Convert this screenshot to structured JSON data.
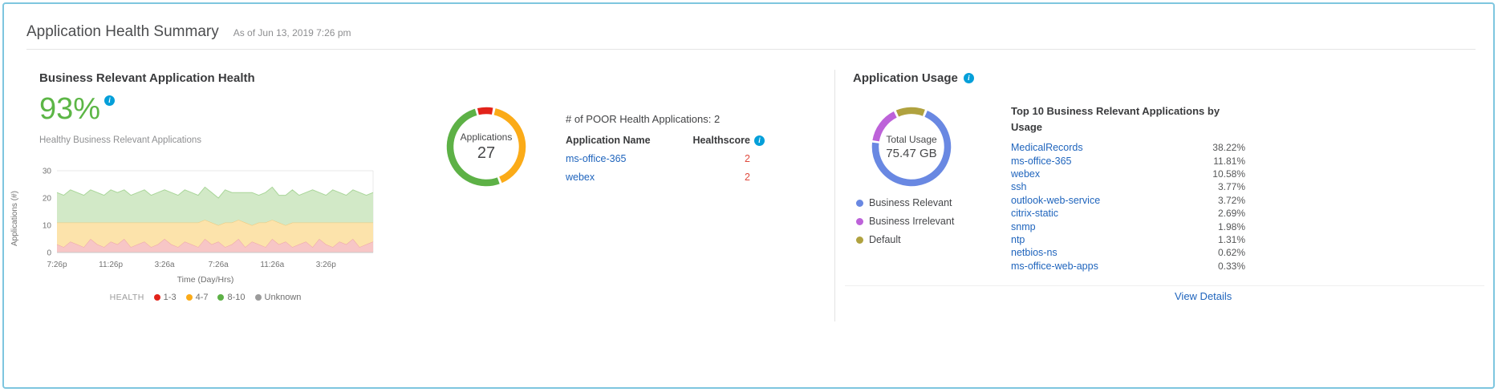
{
  "icons": {
    "info": "i"
  },
  "header": {
    "title": "Application Health Summary",
    "timestamp": "As of Jun 13, 2019 7:26 pm"
  },
  "health": {
    "section_title": "Business Relevant Application Health",
    "percent": "93%",
    "subtitle": "Healthy Business Relevant Applications",
    "poor": {
      "title": "# of POOR Health Applications: 2",
      "name_header": "Application Name",
      "score_header": "Healthscore",
      "rows": [
        {
          "name": "ms-office-365",
          "score": "2"
        },
        {
          "name": "webex",
          "score": "2"
        }
      ]
    }
  },
  "usage": {
    "title": "Application Usage",
    "legend": [
      {
        "label": "Business Relevant",
        "color": "#6988e2"
      },
      {
        "label": "Business Irrelevant",
        "color": "#bd62d9"
      },
      {
        "label": "Default",
        "color": "#b0a23f"
      }
    ],
    "top_title": "Top 10 Business Relevant Applications by Usage",
    "apps": [
      {
        "name": "MedicalRecords",
        "pct": "38.22%"
      },
      {
        "name": "ms-office-365",
        "pct": "11.81%"
      },
      {
        "name": "webex",
        "pct": "10.58%"
      },
      {
        "name": "ssh",
        "pct": "3.77%"
      },
      {
        "name": "outlook-web-service",
        "pct": "3.72%"
      },
      {
        "name": "citrix-static",
        "pct": "2.69%"
      },
      {
        "name": "snmp",
        "pct": "1.98%"
      },
      {
        "name": "ntp",
        "pct": "1.31%"
      },
      {
        "name": "netbios-ns",
        "pct": "0.62%"
      },
      {
        "name": "ms-office-web-apps",
        "pct": "0.33%"
      }
    ],
    "view_details": "View Details"
  },
  "chart_data": [
    {
      "type": "area",
      "stacked": true,
      "title": "",
      "xlabel": "Time (Day/Hrs)",
      "ylabel": "Applications (#)",
      "ylim": [
        0,
        30
      ],
      "yticks": [
        0,
        10,
        20,
        30
      ],
      "n_points": 48,
      "x_tick_labels": [
        "7:26p",
        "11:26p",
        "3:26a",
        "7:26a",
        "11:26a",
        "3:26p"
      ],
      "x_tick_indices": [
        0,
        8,
        16,
        24,
        32,
        40
      ],
      "legend": {
        "title": "HEALTH",
        "items": [
          {
            "label": "1-3",
            "color": "#e2231a"
          },
          {
            "label": "4-7",
            "color": "#fbab18"
          },
          {
            "label": "8-10",
            "color": "#5db146"
          },
          {
            "label": "Unknown",
            "color": "#9b9b9b"
          }
        ]
      },
      "series": [
        {
          "name": "1-3",
          "fill": "#f7c6c6",
          "line": "#eda4a8",
          "values": [
            3,
            2,
            4,
            3,
            2,
            5,
            3,
            2,
            4,
            3,
            5,
            2,
            3,
            4,
            2,
            3,
            5,
            3,
            2,
            4,
            3,
            2,
            5,
            3,
            4,
            2,
            3,
            5,
            2,
            4,
            3,
            2,
            5,
            3,
            4,
            2,
            3,
            4,
            2,
            5,
            3,
            2,
            4,
            3,
            5,
            2,
            3,
            4
          ]
        },
        {
          "name": "4-7",
          "fill": "#fce3ab",
          "line": "#f0c677",
          "values": [
            8,
            9,
            7,
            8,
            9,
            6,
            8,
            9,
            7,
            8,
            6,
            9,
            8,
            7,
            9,
            8,
            6,
            8,
            9,
            7,
            8,
            9,
            7,
            8,
            6,
            9,
            8,
            7,
            9,
            6,
            8,
            9,
            7,
            8,
            6,
            9,
            8,
            7,
            9,
            6,
            8,
            9,
            7,
            8,
            6,
            9,
            8,
            7
          ]
        },
        {
          "name": "8-10",
          "fill": "#d2e9c7",
          "line": "#a9d699",
          "values": [
            11,
            10,
            12,
            11,
            10,
            12,
            11,
            10,
            12,
            11,
            12,
            10,
            11,
            12,
            10,
            11,
            12,
            11,
            10,
            12,
            11,
            10,
            12,
            11,
            10,
            12,
            11,
            10,
            11,
            12,
            10,
            11,
            12,
            10,
            11,
            12,
            10,
            11,
            12,
            11,
            10,
            12,
            11,
            10,
            12,
            11,
            10,
            11
          ]
        }
      ]
    },
    {
      "type": "donut",
      "label": "Applications",
      "value": "27",
      "rotation": -103,
      "segments": [
        {
          "name": "poor",
          "color": "#e2231a",
          "fraction": 0.074
        },
        {
          "name": "fair",
          "color": "#fbab18",
          "fraction": 0.407
        },
        {
          "name": "good",
          "color": "#5db146",
          "fraction": 0.519
        }
      ]
    },
    {
      "type": "donut",
      "label": "Total Usage",
      "value": "75.47 GB",
      "rotation": -113,
      "segments": [
        {
          "name": "Default",
          "color": "#b0a23f",
          "fraction": 0.13
        },
        {
          "name": "Business Relevant",
          "color": "#6988e2",
          "fraction": 0.71
        },
        {
          "name": "Business Irrelevant",
          "color": "#bd62d9",
          "fraction": 0.16
        }
      ]
    }
  ]
}
